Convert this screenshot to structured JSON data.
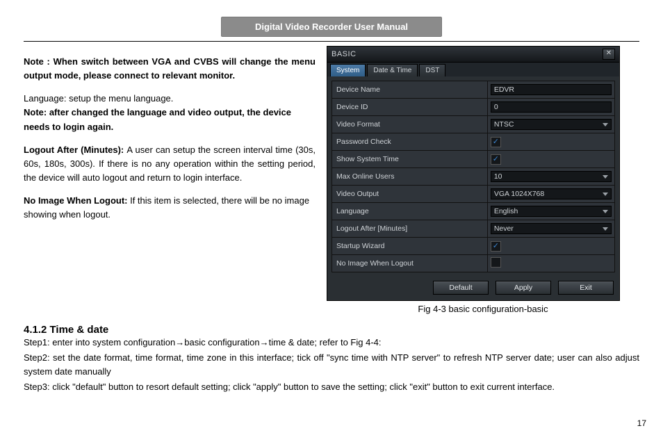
{
  "header": {
    "title": "Digital Video Recorder User Manual"
  },
  "left": {
    "note1_lead": "Note :  ",
    "note1_rest": "When switch between VGA and CVBS will change the menu output mode, please connect to relevant monitor.",
    "lang_line": "Language: setup the menu language.",
    "note2": "Note: after changed the language and video output, the device needs to login again.",
    "logout_lead": "Logout After (Minutes): ",
    "logout_rest": "A user can setup the screen interval time (30s, 60s, 180s, 300s). If there is no any operation within the setting period, the device will auto logout and return to login interface.",
    "noimg_lead": "No Image When Logout: ",
    "noimg_rest": "If this item is selected, there will be no image showing when logout."
  },
  "dialog": {
    "title": "BASIC",
    "tabs": {
      "t1": "System",
      "t2": "Date & Time",
      "t3": "DST"
    },
    "rows": {
      "device_name": {
        "label": "Device Name",
        "value": "EDVR"
      },
      "device_id": {
        "label": "Device ID",
        "value": "0"
      },
      "video_format": {
        "label": "Video Format",
        "value": "NTSC"
      },
      "password_check": {
        "label": "Password Check",
        "checked": true
      },
      "show_system_time": {
        "label": "Show System Time",
        "checked": true
      },
      "max_online_users": {
        "label": "Max Online Users",
        "value": "10"
      },
      "video_output": {
        "label": "Video Output",
        "value": "VGA 1024X768"
      },
      "language": {
        "label": "Language",
        "value": "English"
      },
      "logout_after": {
        "label": "Logout After [Minutes]",
        "value": "Never"
      },
      "startup_wizard": {
        "label": "Startup Wizard",
        "checked": true
      },
      "no_image_logout": {
        "label": "No Image When Logout",
        "checked": false
      }
    },
    "buttons": {
      "default": "Default",
      "apply": "Apply",
      "exit": "Exit"
    }
  },
  "caption": "Fig 4-3 basic configuration-basic",
  "section": {
    "num_title": "4.1.2  Time & date",
    "step1a": "Step1: enter into system configuration",
    "step1b": "basic configuration",
    "step1c": "time & date; refer to Fig 4-4:",
    "step2": "Step2: set the date format, time format, time zone in this interface; tick off \"sync time with NTP server\" to refresh NTP server date; user can also adjust system date manually",
    "step3": "Step3: click \"default\" button to resort default setting; click \"apply\" button to save the setting; click \"exit\" button to exit current interface."
  },
  "arrow": "→",
  "page_num": "17"
}
